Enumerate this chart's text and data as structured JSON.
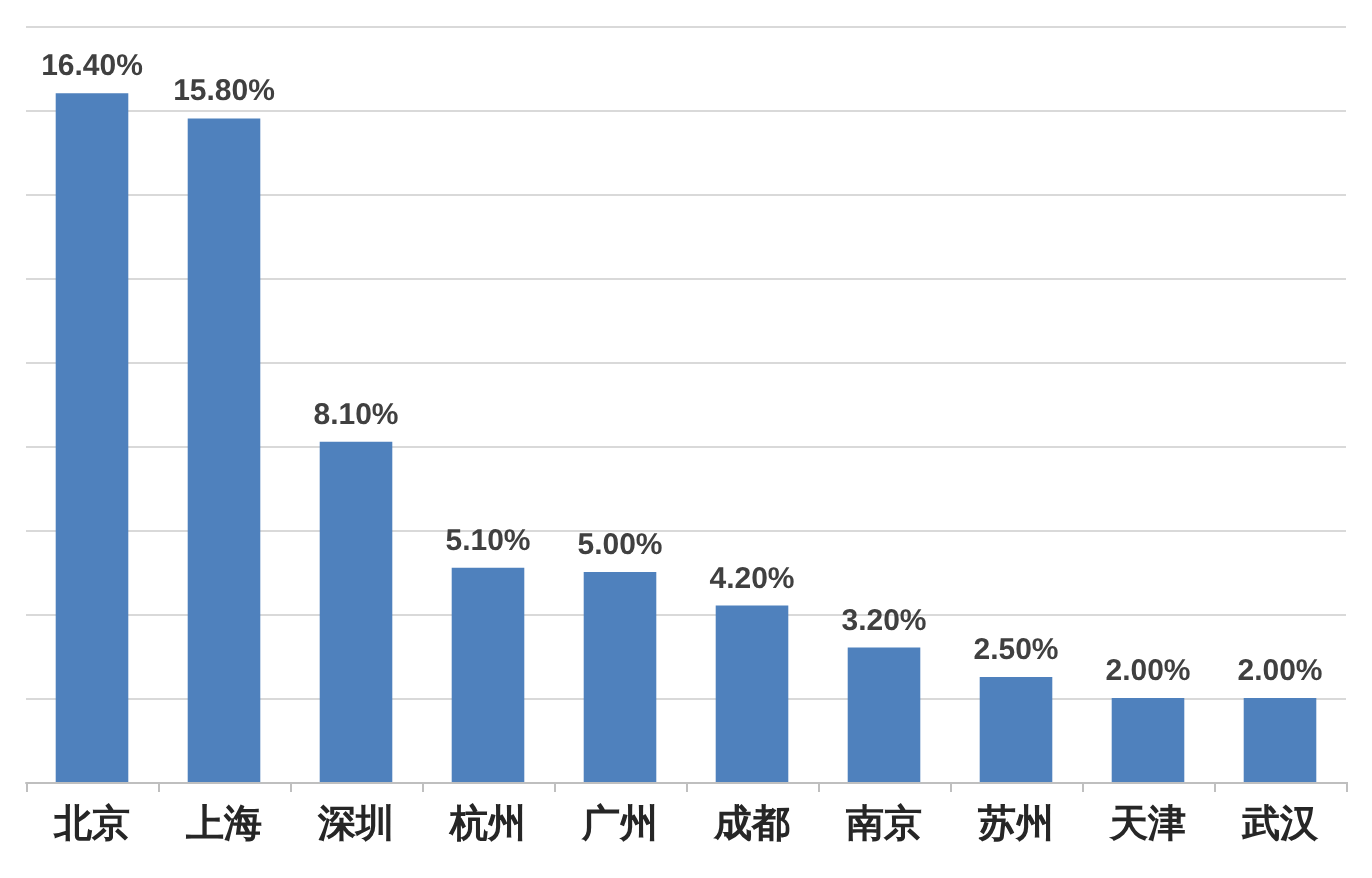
{
  "chart_data": {
    "type": "bar",
    "categories": [
      "北京",
      "上海",
      "深圳",
      "杭州",
      "广州",
      "成都",
      "南京",
      "苏州",
      "天津",
      "武汉"
    ],
    "values": [
      16.4,
      15.8,
      8.1,
      5.1,
      5.0,
      4.2,
      3.2,
      2.5,
      2.0,
      2.0
    ],
    "value_labels": [
      "16.40%",
      "15.80%",
      "8.10%",
      "5.10%",
      "5.00%",
      "4.20%",
      "3.20%",
      "2.50%",
      "2.00%",
      "2.00%"
    ],
    "color": "#4f81bd",
    "ylim": [
      0,
      18
    ],
    "yticks": [
      {
        "value": 0,
        "label": null
      },
      {
        "value": 2,
        "label": null
      },
      {
        "value": 4,
        "label": null
      },
      {
        "value": 6,
        "label": null
      },
      {
        "value": 8,
        "label": null
      },
      {
        "value": 10,
        "label": null
      },
      {
        "value": 12,
        "label": null
      },
      {
        "value": 14,
        "label": null
      },
      {
        "value": 16,
        "label": null
      },
      {
        "value": 18,
        "label": null
      }
    ],
    "grid": "y",
    "tick_labels": "x"
  }
}
